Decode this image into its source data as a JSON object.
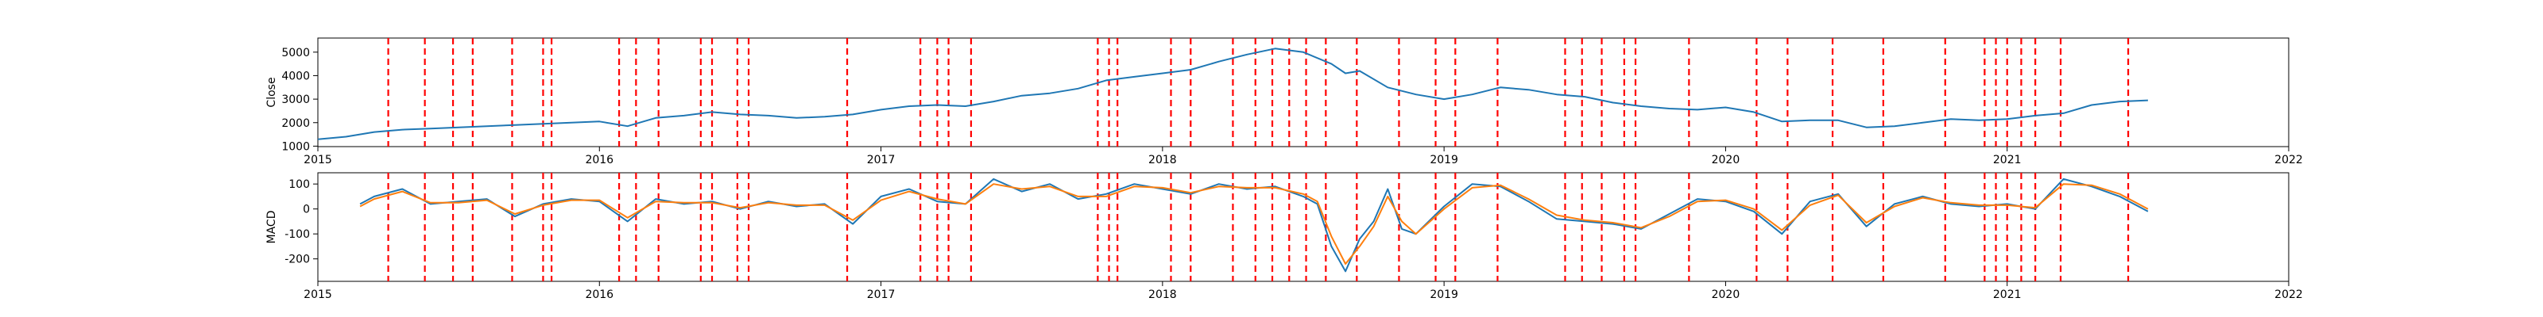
{
  "chart_data": [
    {
      "type": "line",
      "ylabel": "Close",
      "x_ticks": [
        "2015",
        "2016",
        "2017",
        "2018",
        "2019",
        "2020",
        "2021",
        "2022"
      ],
      "y_ticks": [
        "1000",
        "2000",
        "3000",
        "4000",
        "5000"
      ],
      "xlim": [
        2015.0,
        2022.0
      ],
      "ylim": [
        980,
        5600
      ],
      "series": [
        {
          "color": "#1f77b4",
          "x": [
            2015.0,
            2015.1,
            2015.2,
            2015.3,
            2015.4,
            2015.5,
            2015.6,
            2015.7,
            2015.8,
            2015.9,
            2016.0,
            2016.1,
            2016.2,
            2016.3,
            2016.4,
            2016.5,
            2016.6,
            2016.7,
            2016.8,
            2016.9,
            2017.0,
            2017.1,
            2017.2,
            2017.3,
            2017.4,
            2017.5,
            2017.6,
            2017.7,
            2017.8,
            2017.9,
            2018.0,
            2018.1,
            2018.2,
            2018.3,
            2018.4,
            2018.5,
            2018.6,
            2018.65,
            2018.7,
            2018.8,
            2018.9,
            2019.0,
            2019.1,
            2019.2,
            2019.3,
            2019.4,
            2019.5,
            2019.6,
            2019.7,
            2019.8,
            2019.9,
            2020.0,
            2020.1,
            2020.2,
            2020.3,
            2020.4,
            2020.5,
            2020.6,
            2020.7,
            2020.8,
            2020.9,
            2021.0,
            2021.1,
            2021.2,
            2021.3,
            2021.4,
            2021.5
          ],
          "y": [
            1290,
            1400,
            1600,
            1700,
            1750,
            1800,
            1850,
            1900,
            1950,
            2000,
            2050,
            1850,
            2200,
            2300,
            2450,
            2350,
            2300,
            2200,
            2250,
            2350,
            2550,
            2700,
            2750,
            2700,
            2900,
            3150,
            3250,
            3450,
            3800,
            3950,
            4100,
            4250,
            4600,
            4900,
            5150,
            5000,
            4500,
            4100,
            4200,
            3500,
            3200,
            3000,
            3200,
            3500,
            3400,
            3200,
            3100,
            2850,
            2700,
            2600,
            2550,
            2650,
            2450,
            2050,
            2100,
            2100,
            1800,
            1850,
            2000,
            2150,
            2100,
            2150,
            2300,
            2400,
            2750,
            2900,
            2950
          ]
        }
      ]
    },
    {
      "type": "line",
      "ylabel": "MACD",
      "x_ticks": [
        "2015",
        "2016",
        "2017",
        "2018",
        "2019",
        "2020",
        "2021",
        "2022"
      ],
      "y_ticks": [
        "-200",
        "-100",
        "0",
        "100"
      ],
      "xlim": [
        2015.0,
        2022.0
      ],
      "ylim": [
        -290,
        145
      ],
      "series": [
        {
          "color": "#1f77b4",
          "x": [
            2015.15,
            2015.2,
            2015.3,
            2015.4,
            2015.5,
            2015.6,
            2015.7,
            2015.8,
            2015.9,
            2016.0,
            2016.1,
            2016.2,
            2016.3,
            2016.4,
            2016.5,
            2016.6,
            2016.7,
            2016.8,
            2016.9,
            2017.0,
            2017.1,
            2017.2,
            2017.3,
            2017.4,
            2017.5,
            2017.6,
            2017.7,
            2017.8,
            2017.9,
            2018.0,
            2018.1,
            2018.2,
            2018.3,
            2018.4,
            2018.5,
            2018.55,
            2018.6,
            2018.65,
            2018.7,
            2018.75,
            2018.8,
            2018.85,
            2018.9,
            2019.0,
            2019.1,
            2019.2,
            2019.3,
            2019.4,
            2019.5,
            2019.6,
            2019.7,
            2019.8,
            2019.9,
            2020.0,
            2020.1,
            2020.2,
            2020.3,
            2020.4,
            2020.5,
            2020.6,
            2020.7,
            2020.8,
            2020.9,
            2021.0,
            2021.1,
            2021.2,
            2021.3,
            2021.4,
            2021.5
          ],
          "y": [
            20,
            50,
            80,
            20,
            30,
            40,
            -30,
            20,
            40,
            30,
            -50,
            40,
            20,
            30,
            0,
            30,
            10,
            20,
            -60,
            50,
            80,
            30,
            20,
            120,
            70,
            100,
            40,
            60,
            100,
            80,
            60,
            100,
            80,
            90,
            50,
            20,
            -150,
            -250,
            -120,
            -50,
            80,
            -80,
            -100,
            10,
            100,
            90,
            30,
            -40,
            -50,
            -60,
            -80,
            -20,
            40,
            30,
            -10,
            -100,
            30,
            60,
            -70,
            20,
            50,
            20,
            10,
            20,
            0,
            120,
            90,
            50,
            -10
          ]
        },
        {
          "color": "#ff7f0e",
          "x": [
            2015.15,
            2015.2,
            2015.3,
            2015.4,
            2015.5,
            2015.6,
            2015.7,
            2015.8,
            2015.9,
            2016.0,
            2016.1,
            2016.2,
            2016.3,
            2016.4,
            2016.5,
            2016.6,
            2016.7,
            2016.8,
            2016.9,
            2017.0,
            2017.1,
            2017.2,
            2017.3,
            2017.4,
            2017.5,
            2017.6,
            2017.7,
            2017.8,
            2017.9,
            2018.0,
            2018.1,
            2018.2,
            2018.3,
            2018.4,
            2018.5,
            2018.55,
            2018.6,
            2018.65,
            2018.7,
            2018.75,
            2018.8,
            2018.85,
            2018.9,
            2019.0,
            2019.1,
            2019.2,
            2019.3,
            2019.4,
            2019.5,
            2019.6,
            2019.7,
            2019.8,
            2019.9,
            2020.0,
            2020.1,
            2020.2,
            2020.3,
            2020.4,
            2020.5,
            2020.6,
            2020.7,
            2020.8,
            2020.9,
            2021.0,
            2021.1,
            2021.2,
            2021.3,
            2021.4,
            2021.5
          ],
          "y": [
            10,
            40,
            70,
            25,
            25,
            35,
            -20,
            15,
            35,
            35,
            -35,
            30,
            25,
            25,
            5,
            25,
            15,
            15,
            -45,
            35,
            70,
            40,
            20,
            100,
            80,
            90,
            50,
            50,
            90,
            85,
            65,
            90,
            85,
            85,
            60,
            30,
            -110,
            -220,
            -150,
            -70,
            50,
            -50,
            -100,
            0,
            85,
            95,
            40,
            -25,
            -45,
            -55,
            -75,
            -30,
            30,
            35,
            0,
            -85,
            15,
            55,
            -55,
            10,
            45,
            25,
            15,
            15,
            5,
            100,
            95,
            60,
            0
          ]
        }
      ]
    }
  ],
  "event_lines": {
    "color": "#ff0000",
    "x": [
      2015.25,
      2015.38,
      2015.48,
      2015.55,
      2015.69,
      2015.8,
      2015.83,
      2016.07,
      2016.13,
      2016.21,
      2016.36,
      2016.4,
      2016.49,
      2016.53,
      2016.88,
      2017.14,
      2017.2,
      2017.24,
      2017.32,
      2017.77,
      2017.81,
      2017.84,
      2018.03,
      2018.1,
      2018.25,
      2018.33,
      2018.39,
      2018.45,
      2018.51,
      2018.58,
      2018.69,
      2018.84,
      2018.97,
      2019.04,
      2019.19,
      2019.43,
      2019.49,
      2019.56,
      2019.64,
      2019.68,
      2019.87,
      2020.11,
      2020.22,
      2020.38,
      2020.56,
      2020.78,
      2020.92,
      2020.96,
      2021.0,
      2021.05,
      2021.1,
      2021.19,
      2021.43
    ]
  }
}
